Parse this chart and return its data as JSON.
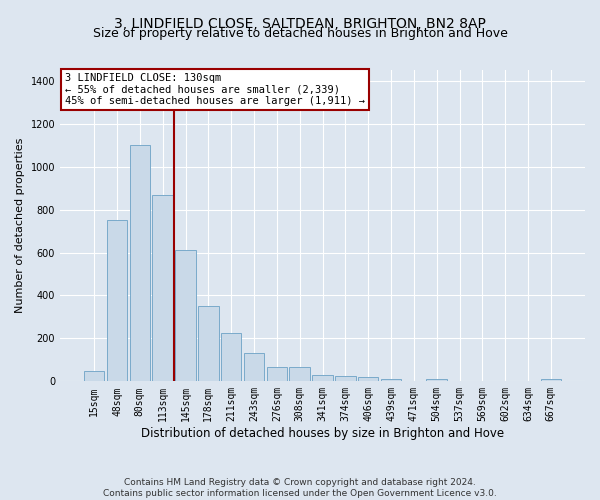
{
  "title": "3, LINDFIELD CLOSE, SALTDEAN, BRIGHTON, BN2 8AP",
  "subtitle": "Size of property relative to detached houses in Brighton and Hove",
  "xlabel": "Distribution of detached houses by size in Brighton and Hove",
  "ylabel": "Number of detached properties",
  "categories": [
    "15sqm",
    "48sqm",
    "80sqm",
    "113sqm",
    "145sqm",
    "178sqm",
    "211sqm",
    "243sqm",
    "276sqm",
    "308sqm",
    "341sqm",
    "374sqm",
    "406sqm",
    "439sqm",
    "471sqm",
    "504sqm",
    "537sqm",
    "569sqm",
    "602sqm",
    "634sqm",
    "667sqm"
  ],
  "values": [
    50,
    750,
    1100,
    870,
    610,
    350,
    225,
    130,
    65,
    65,
    30,
    25,
    18,
    10,
    0,
    13,
    0,
    0,
    0,
    0,
    13
  ],
  "bar_color": "#c9d9e8",
  "bar_edge_color": "#7aaacb",
  "vline_x": 3.5,
  "vline_color": "#990000",
  "annotation_text": "3 LINDFIELD CLOSE: 130sqm\n← 55% of detached houses are smaller (2,339)\n45% of semi-detached houses are larger (1,911) →",
  "annotation_box_color": "#ffffff",
  "annotation_box_edge": "#990000",
  "ylim": [
    0,
    1450
  ],
  "yticks": [
    0,
    200,
    400,
    600,
    800,
    1000,
    1200,
    1400
  ],
  "background_color": "#dde6f0",
  "axes_bg_color": "#dde6f0",
  "grid_color": "#ffffff",
  "footnote": "Contains HM Land Registry data © Crown copyright and database right 2024.\nContains public sector information licensed under the Open Government Licence v3.0.",
  "title_fontsize": 10,
  "subtitle_fontsize": 9,
  "xlabel_fontsize": 8.5,
  "ylabel_fontsize": 8,
  "tick_fontsize": 7,
  "annot_fontsize": 7.5,
  "footnote_fontsize": 6.5
}
